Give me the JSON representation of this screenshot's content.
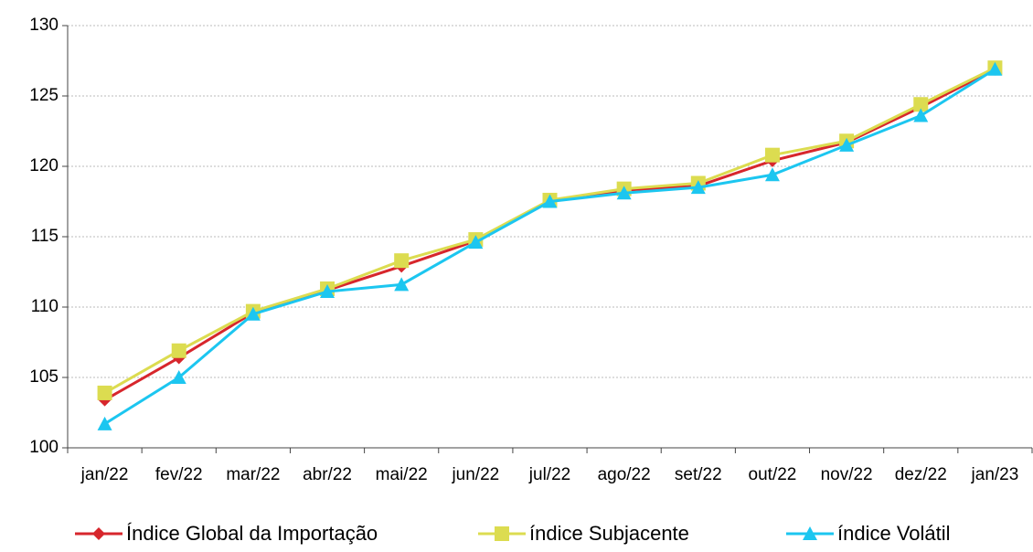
{
  "chart_data": {
    "type": "line",
    "categories": [
      "jan/22",
      "fev/22",
      "mar/22",
      "abr/22",
      "mai/22",
      "jun/22",
      "jul/22",
      "ago/22",
      "set/22",
      "out/22",
      "nov/22",
      "dez/22",
      "jan/23"
    ],
    "series": [
      {
        "name": "Índice Global da Importação",
        "color": "#d7262c",
        "marker": "diamond",
        "values": [
          103.4,
          106.4,
          109.6,
          111.2,
          112.9,
          114.7,
          117.5,
          118.3,
          118.6,
          120.4,
          121.7,
          124.2,
          126.9
        ]
      },
      {
        "name": "índice Subjacente",
        "color": "#dcdc50",
        "marker": "square",
        "values": [
          103.9,
          106.9,
          109.7,
          111.3,
          113.3,
          114.8,
          117.6,
          118.4,
          118.8,
          120.8,
          121.8,
          124.4,
          127.0
        ]
      },
      {
        "name": "índice Volátil",
        "color": "#1cc6f0",
        "marker": "triangle",
        "values": [
          101.7,
          105.0,
          109.5,
          111.1,
          111.6,
          114.6,
          117.5,
          118.1,
          118.5,
          119.4,
          121.5,
          123.6,
          126.9
        ]
      }
    ],
    "ylim": [
      100,
      130
    ],
    "yticks": [
      100,
      105,
      110,
      115,
      120,
      125,
      130
    ],
    "grid": true,
    "legend": "bottom"
  }
}
